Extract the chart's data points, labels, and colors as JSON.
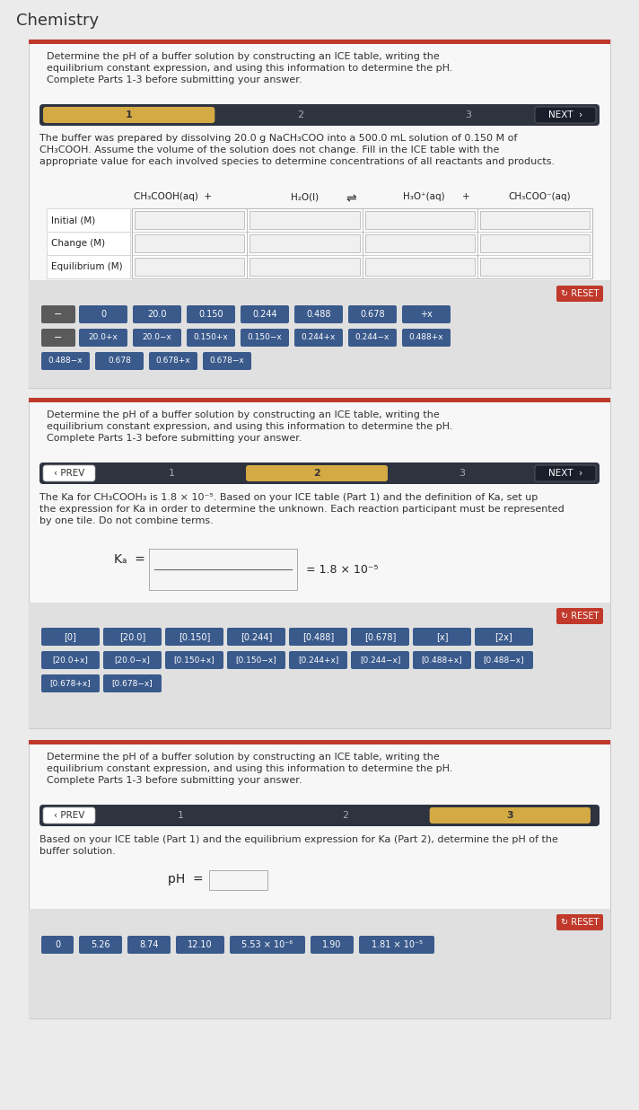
{
  "title": "Chemistry",
  "bg_color": "#ebebeb",
  "panel_bg": "#ffffff",
  "red_top_bar": "#c0392b",
  "dark_nav": "#2e3340",
  "nav_active_color": "#d4aa45",
  "btn_blue": "#3a5a8c",
  "btn_gray": "#5a5a5a",
  "btn_red_reset": "#c0392b",
  "section1": {
    "instruction": "Determine the pH of a buffer solution by constructing an ICE table, writing the\nequilibrium constant expression, and using this information to determine the pH.\nComplete Parts 1-3 before submitting your answer.",
    "body_text": "The buffer was prepared by dissolving 20.0 g NaCH₃COO into a 500.0 mL solution of 0.150 M of\nCH₃COOH. Assume the volume of the solution does not change. Fill in the ICE table with the\nappropriate value for each involved species to determine concentrations of all reactants and products.",
    "ice_rows": [
      "Initial (M)",
      "Change (M)",
      "Equilibrium (M)"
    ],
    "tiles_row1_gray": [
      "−"
    ],
    "tiles_row1_blue": [
      "0",
      "20.0",
      "0.150",
      "0.244",
      "0.488",
      "0.678",
      "+x"
    ],
    "tiles_row2_gray": [
      "−"
    ],
    "tiles_row2_blue": [
      "20.0+x",
      "20.0−x",
      "0.150+x",
      "0.150−x",
      "0.244+x",
      "0.244−x",
      "0.488+x"
    ],
    "tiles_row3_blue": [
      "0.488−x",
      "0.678",
      "0.678+x",
      "0.678−x"
    ]
  },
  "section2": {
    "instruction": "Determine the pH of a buffer solution by constructing an ICE table, writing the\nequilibrium constant expression, and using this information to determine the pH.\nComplete Parts 1-3 before submitting your answer.",
    "body_text": "The Ka for CH₃COOH₃ is 1.8 × 10⁻⁵. Based on your ICE table (Part 1) and the definition of Ka, set up\nthe expression for Ka in order to determine the unknown. Each reaction participant must be represented\nby one tile. Do not combine terms.",
    "ka_value": "= 1.8 × 10⁻⁵",
    "tiles_row1": [
      "[0]",
      "[20.0]",
      "[0.150]",
      "[0.244]",
      "[0.488]",
      "[0.678]",
      "[x]",
      "[2x]"
    ],
    "tiles_row2": [
      "[20.0+x]",
      "[20.0−x]",
      "[0.150+x]",
      "[0.150−x]",
      "[0.244+x]",
      "[0.244−x]",
      "[0.488+x]",
      "[0.488−x]"
    ],
    "tiles_row3": [
      "[0.678+x]",
      "[0.678−x]"
    ]
  },
  "section3": {
    "instruction": "Determine the pH of a buffer solution by constructing an ICE table, writing the\nequilibrium constant expression, and using this information to determine the pH.\nComplete Parts 1-3 before submitting your answer.",
    "body_text": "Based on your ICE table (Part 1) and the equilibrium expression for Ka (Part 2), determine the pH of the\nbuffer solution.",
    "tiles": [
      "0",
      "5.26",
      "8.74",
      "12.10",
      "5.53 × 10⁻⁶",
      "1.90",
      "1.81 × 10⁻⁵"
    ]
  }
}
